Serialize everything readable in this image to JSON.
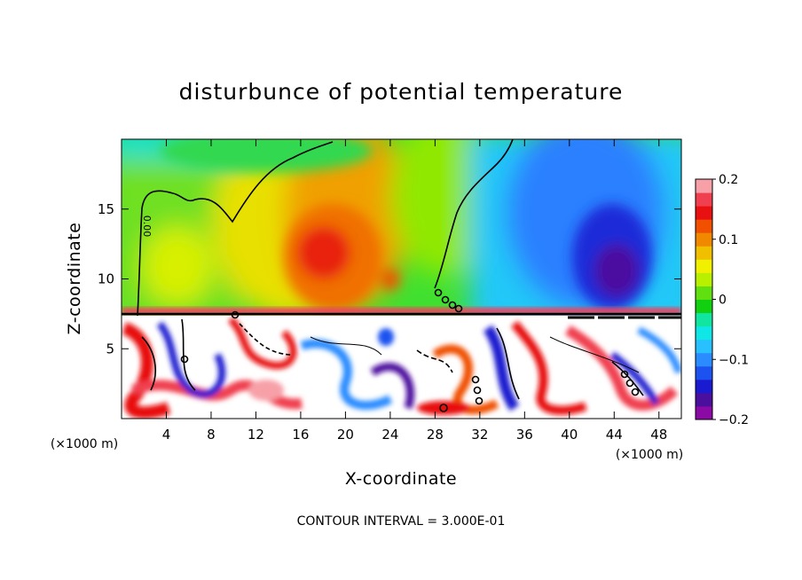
{
  "chart_data": {
    "type": "heatmap",
    "title": "disturbunce of potential temperature",
    "xlabel": "X-coordinate",
    "ylabel": "Z-coordinate",
    "x_unit": "(×1000 m)",
    "x_unit_right": "(×1000 m)",
    "xlim": [
      0,
      50
    ],
    "ylim": [
      0,
      20
    ],
    "x_ticks": [
      4,
      8,
      12,
      16,
      20,
      24,
      28,
      32,
      36,
      40,
      44,
      48
    ],
    "y_ticks": [
      5,
      10,
      15
    ],
    "contour_interval_text": "CONTOUR INTERVAL = 3.000E-01",
    "contour_labels": [
      "0.00",
      "0.00"
    ],
    "colorbar": {
      "vmin": -0.2,
      "vmax": 0.2,
      "tick_values": [
        0.2,
        0.1,
        0,
        -0.1,
        -0.2
      ],
      "tick_labels": [
        "0.2",
        "0.1",
        "0",
        "−0.1",
        "−0.2"
      ],
      "colors": [
        "#8b0aa5",
        "#4b0f9e",
        "#1a1ad0",
        "#1b52f0",
        "#2a8cff",
        "#28c0ff",
        "#10e6e6",
        "#10e6a0",
        "#10d010",
        "#60e010",
        "#b8f000",
        "#f0f000",
        "#f0c000",
        "#f08800",
        "#f05000",
        "#e81010",
        "#f04050",
        "#f7a0a8"
      ]
    },
    "field_regions": [
      {
        "name": "upper-background",
        "x": [
          0,
          50
        ],
        "z": [
          7.5,
          20
        ],
        "value": 0.0
      },
      {
        "name": "warm-anomaly-center",
        "x": [
          14,
          24
        ],
        "z": [
          7.5,
          18
        ],
        "value": 0.14
      },
      {
        "name": "warm-anomaly-core",
        "x": [
          16,
          21
        ],
        "z": [
          9,
          13
        ],
        "value": 0.18
      },
      {
        "name": "cold-anomaly-east",
        "x": [
          36,
          50
        ],
        "z": [
          7.5,
          20
        ],
        "value": -0.1
      },
      {
        "name": "cold-anomaly-core",
        "x": [
          41,
          47
        ],
        "z": [
          8,
          14
        ],
        "value": -0.18
      },
      {
        "name": "lower-turbulent-layer",
        "x": [
          0,
          50
        ],
        "z": [
          0,
          7.5
        ],
        "value": 0.0
      }
    ]
  }
}
